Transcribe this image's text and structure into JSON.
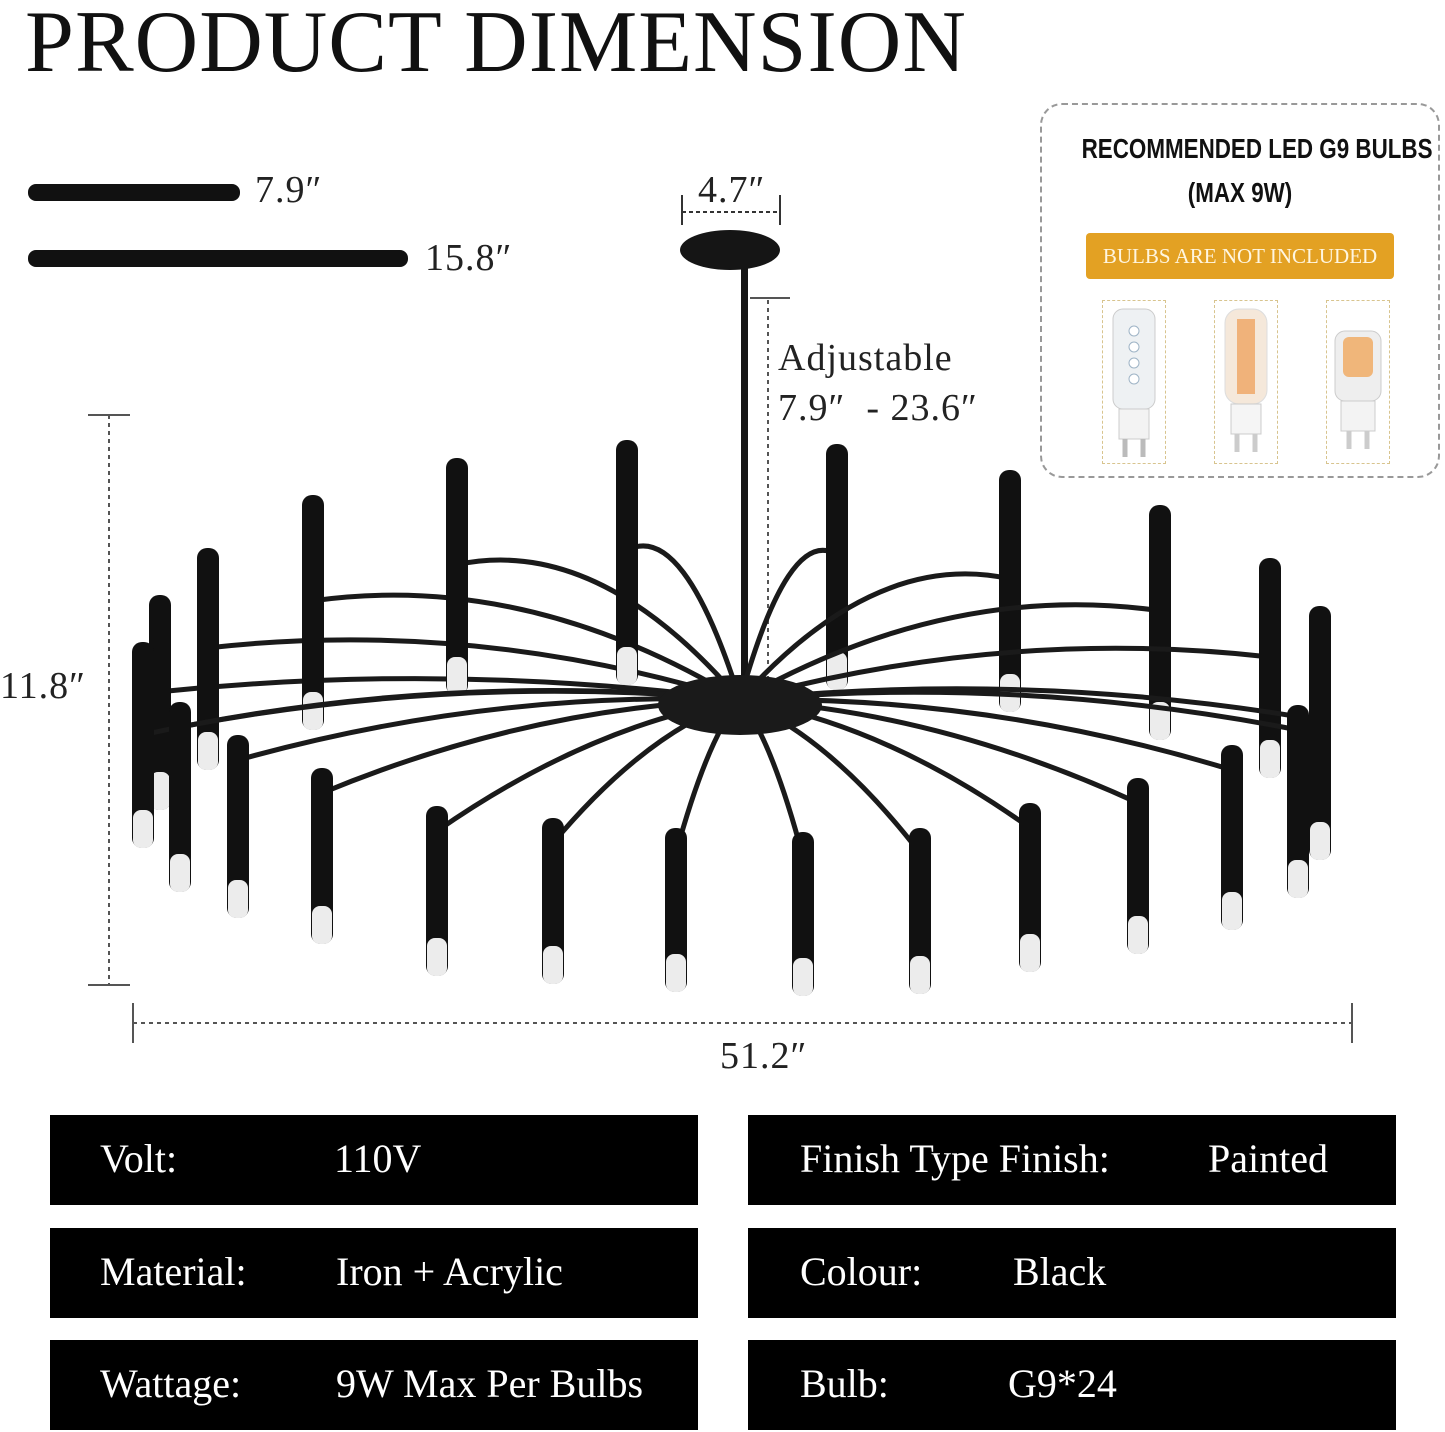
{
  "title": "PRODUCT DIMENSION",
  "dimensions": {
    "short_rod": "7.9″",
    "long_rod": "15.8″",
    "canopy": "4.7″",
    "adjustable_label": "Adjustable",
    "adjustable_range": "7.9″  - 23.6″",
    "height": "11.8″",
    "width": "51.2″"
  },
  "bulb_panel": {
    "title_line1": "RECOMMENDED LED G9 BULBS",
    "title_line2": "(MAX 9W)",
    "notice": "BULBS ARE NOT INCLUDED",
    "notice_color": "#e3a123"
  },
  "specs": [
    {
      "label": "Volt:",
      "value": "110V"
    },
    {
      "label": "Finish Type Finish:",
      "value": "Painted"
    },
    {
      "label": "Material:",
      "value": "Iron + Acrylic"
    },
    {
      "label": "Colour:",
      "value": "Black"
    },
    {
      "label": "Wattage:",
      "value": "9W Max Per Bulbs"
    },
    {
      "label": "Bulb:",
      "value": "G9*24"
    }
  ]
}
